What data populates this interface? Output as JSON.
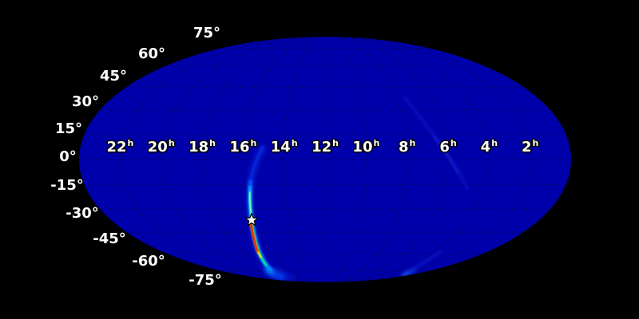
{
  "figure": {
    "background_color": "#000000",
    "sky_fill_color": "#0000aa",
    "graticule_color": "#000022",
    "tick_label_color": "#ffffff",
    "marker_color": "#ffffff"
  },
  "chart_data": {
    "type": "heatmap",
    "title": "",
    "projection": "mollweide",
    "colormap": "jet",
    "description": "All-sky probability localization map on a dark-blue Mollweide ellipse over black, with a dotted graticule, a thin arc-shaped high-probability region (blue-cyan-green with a red-orange peak) in the southern sky, a white star marker at the most probable point, and two very faint blue streaks in the eastern sky.",
    "ra_ticks": [
      "22h",
      "20h",
      "18h",
      "16h",
      "14h",
      "12h",
      "10h",
      "8h",
      "6h",
      "4h",
      "2h"
    ],
    "dec_ticks": [
      "75°",
      "60°",
      "45°",
      "30°",
      "15°",
      "0°",
      "-15°",
      "-30°",
      "-45°",
      "-60°",
      "-75°"
    ],
    "graticule_spacing": {
      "ra_hours": 2,
      "dec_degrees": 15
    },
    "star_marker": {
      "ra_hours": 16.1,
      "dec_degrees": -37
    },
    "high_probability_arc": {
      "shape": "thin arc (lune segment)",
      "from": {
        "ra_hours": 15.0,
        "dec_degrees": 8
      },
      "through_star": {
        "ra_hours": 16.1,
        "dec_degrees": -37
      },
      "to": {
        "ra_hours": 18.5,
        "dec_degrees": -80
      },
      "peak_dec_degrees_range": [
        -39,
        -53
      ],
      "peak_color": "red-orange (colormap maximum)"
    },
    "faint_streaks": [
      {
        "region": "north-east",
        "from": {
          "ra_hours": 7.5,
          "dec_degrees": 39
        },
        "to": {
          "ra_hours": 4.8,
          "dec_degrees": -18
        }
      },
      {
        "region": "south-east",
        "from": {
          "ra_hours": 3.4,
          "dec_degrees": -58
        },
        "to": {
          "ra_hours": 0.8,
          "dec_degrees": -79
        }
      }
    ]
  }
}
